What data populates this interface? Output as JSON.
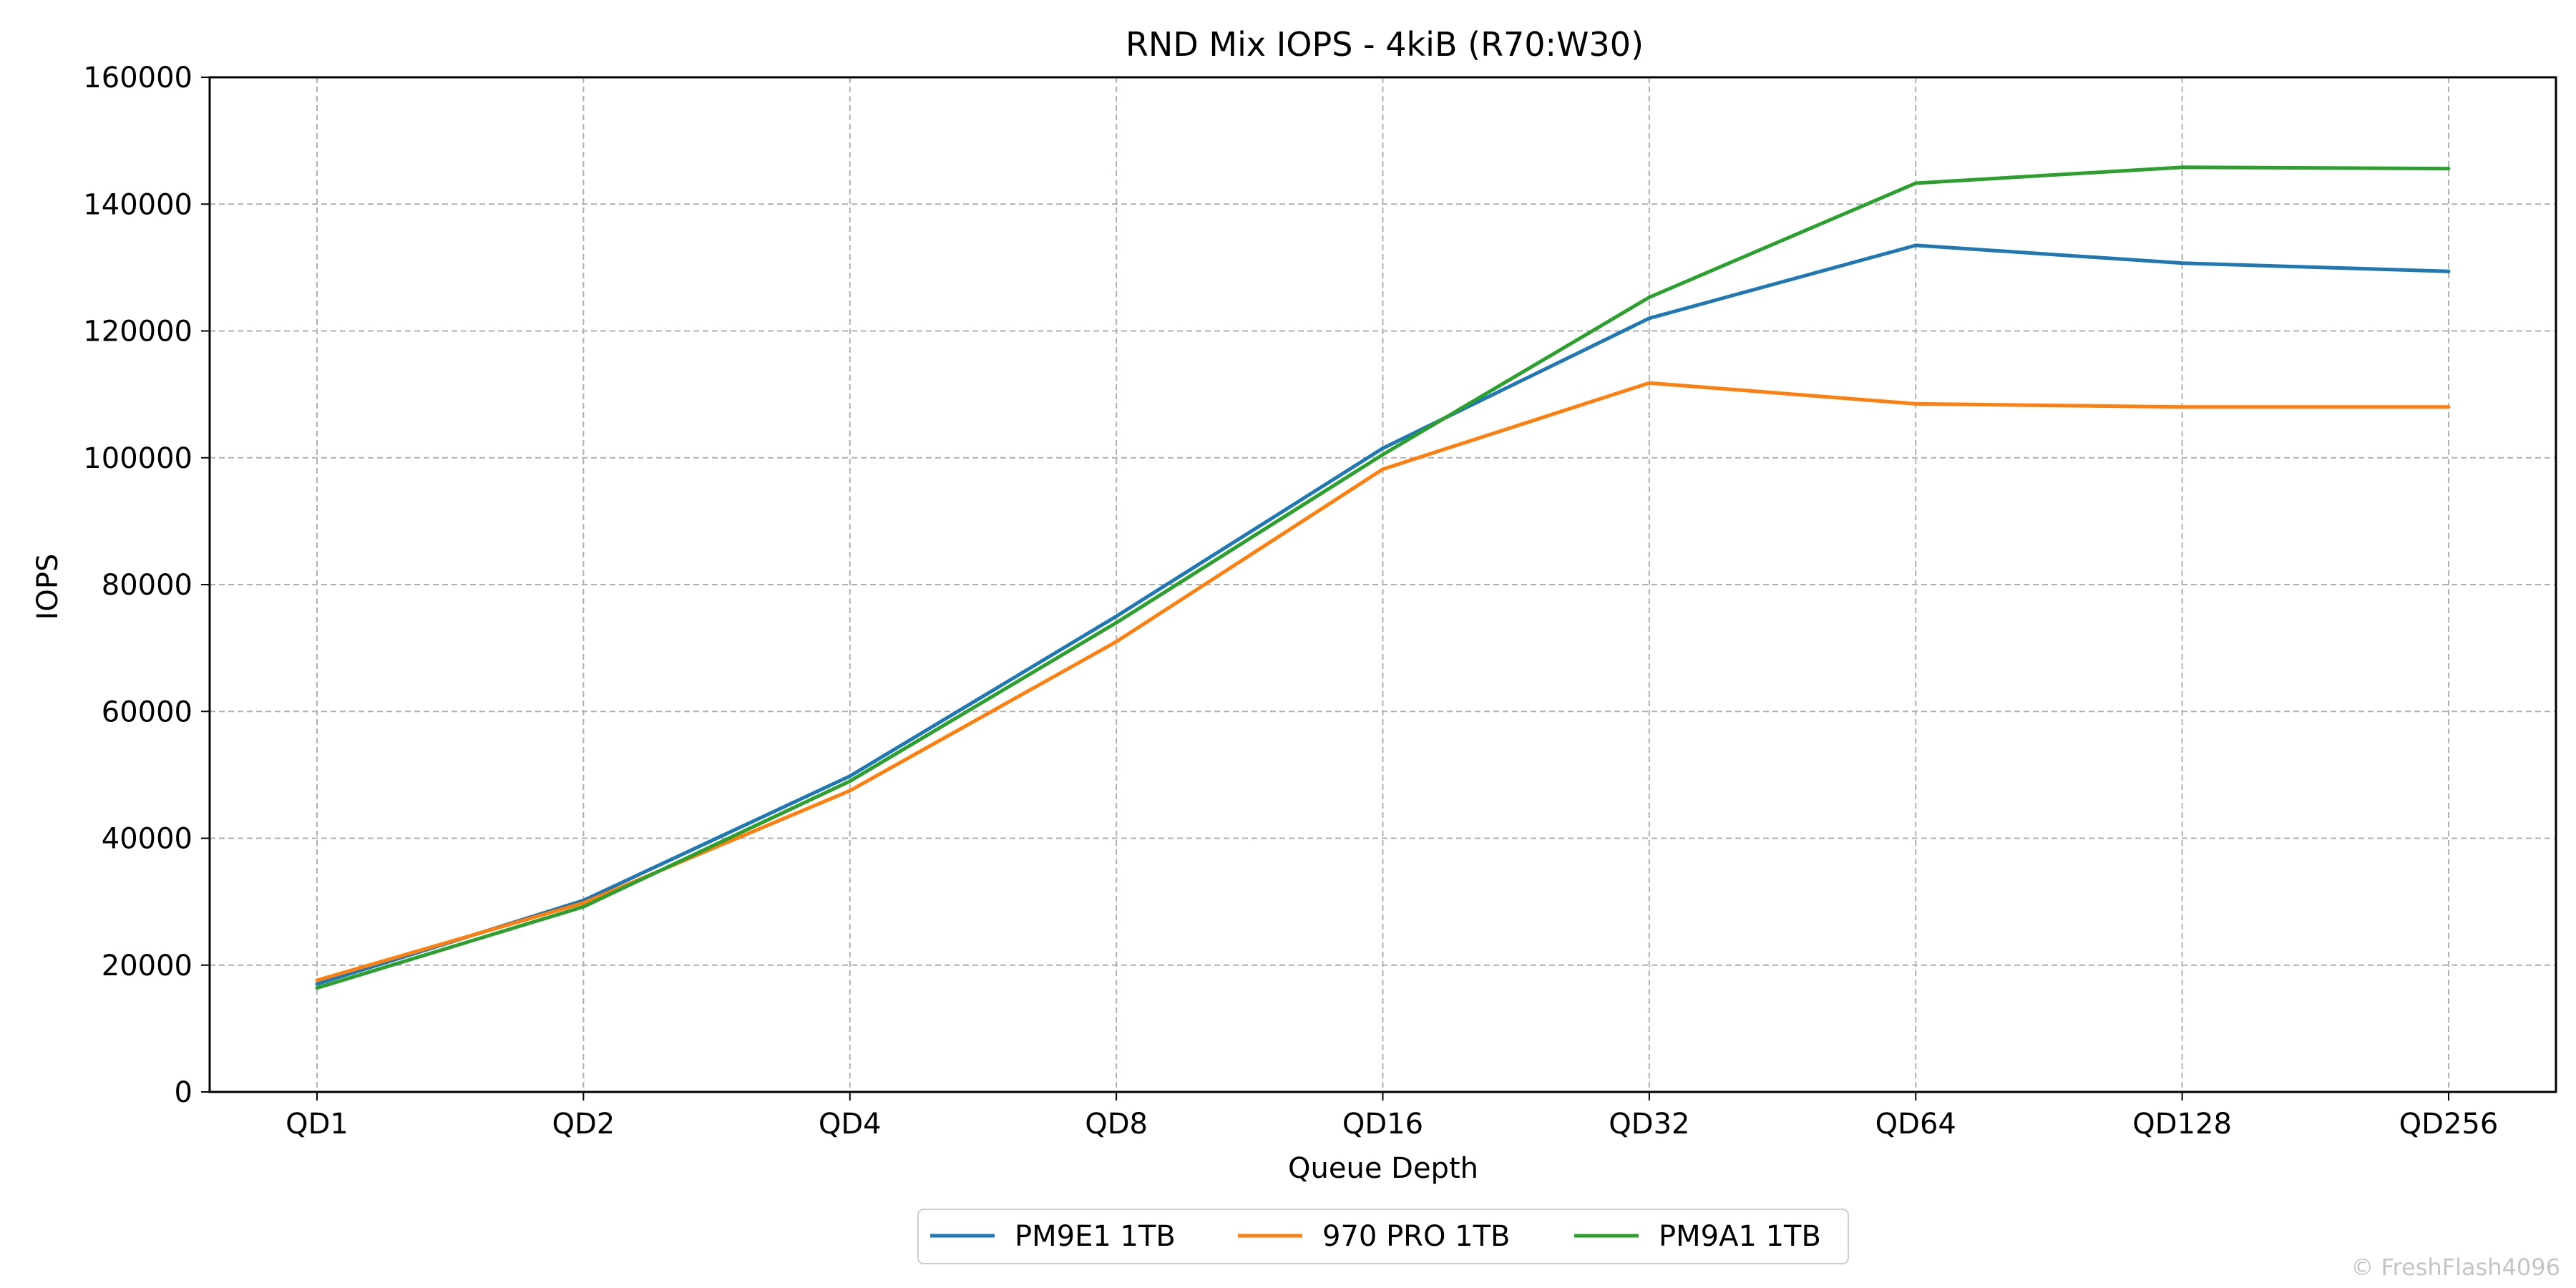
{
  "chart_data": {
    "type": "line",
    "title": "RND Mix IOPS - 4kiB (R70:W30)",
    "xlabel": "Queue Depth",
    "ylabel": "IOPS",
    "categories": [
      "QD1",
      "QD2",
      "QD4",
      "QD8",
      "QD16",
      "QD32",
      "QD64",
      "QD128",
      "QD256"
    ],
    "ylim": [
      0,
      160000
    ],
    "yticks": [
      "0",
      "20000",
      "40000",
      "60000",
      "80000",
      "100000",
      "120000",
      "140000",
      "160000"
    ],
    "grid": true,
    "legend": "bottom-center",
    "series": [
      {
        "name": "PM9E1 1TB",
        "color": "#1f77b4",
        "values": [
          17000,
          30200,
          49800,
          75000,
          101500,
          122000,
          133500,
          130700,
          129400
        ]
      },
      {
        "name": "970 PRO 1TB",
        "color": "#ff7f0e",
        "values": [
          17600,
          29800,
          47500,
          71000,
          98200,
          111800,
          108500,
          108000,
          108000
        ]
      },
      {
        "name": "PM9A1 1TB",
        "color": "#2ca02c",
        "values": [
          16400,
          29200,
          49000,
          74000,
          100500,
          125300,
          143300,
          145800,
          145600
        ]
      }
    ]
  },
  "watermark": "© FreshFlash4096"
}
